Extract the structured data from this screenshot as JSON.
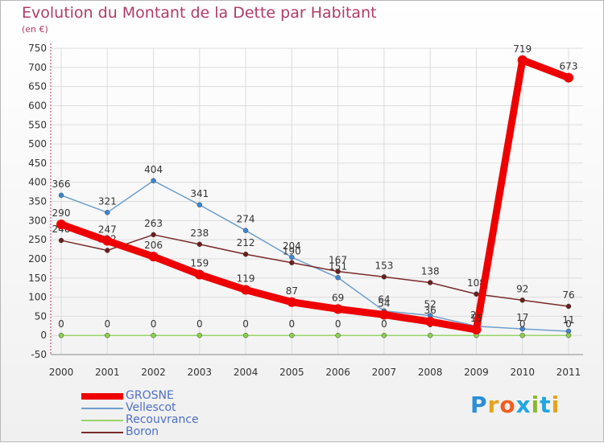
{
  "title": "Evolution du Montant de la Dette par Habitant",
  "subtitle": "(en €)",
  "logo": {
    "text": "Proxiti",
    "colors": [
      "#2a8fd6",
      "#e8a21b",
      "#f25c1f",
      "#22a6e0",
      "#8ab92b",
      "#22a6e0",
      "#e8a21b"
    ]
  },
  "chart_data": {
    "type": "line",
    "title": "Evolution du Montant de la Dette par Habitant",
    "subtitle": "(en €)",
    "x": [
      "2000",
      "2001",
      "2002",
      "2003",
      "2004",
      "2005",
      "2006",
      "2007",
      "2008",
      "2009",
      "2010",
      "2011"
    ],
    "ylim": [
      -50,
      750
    ],
    "yticks": [
      -50,
      0,
      50,
      100,
      150,
      200,
      250,
      300,
      350,
      400,
      450,
      500,
      550,
      600,
      650,
      700,
      750
    ],
    "grid": true,
    "legend_position": "bottom-left",
    "series": [
      {
        "name": "Vellescot",
        "color": "#6f9fd0",
        "marker": "#3f86cf",
        "width": 1.5,
        "values": [
          366,
          321,
          404,
          341,
          274,
          204,
          151,
          64,
          52,
          24,
          17,
          11
        ],
        "labels": [
          "366",
          "321",
          "404",
          "341",
          "274",
          "204",
          "151",
          "64",
          "52",
          "24",
          "17",
          "11"
        ]
      },
      {
        "name": "Recouvrance",
        "color": "#9ad46a",
        "marker": "#8bcf4c",
        "width": 1.5,
        "values": [
          0,
          0,
          0,
          0,
          0,
          0,
          0,
          0,
          0,
          0,
          0,
          0
        ],
        "labels": [
          "0",
          "0",
          "0",
          "0",
          "0",
          "0",
          "0",
          "0",
          "0",
          "0",
          "0",
          "0"
        ]
      },
      {
        "name": "Boron",
        "color": "#7a2a2a",
        "marker": "#6b1e1e",
        "width": 1.5,
        "values": [
          248,
          222,
          263,
          238,
          212,
          190,
          167,
          153,
          138,
          108,
          92,
          76
        ],
        "labels": [
          "248",
          "222",
          "263",
          "238",
          "212",
          "190",
          "167",
          "153",
          "138",
          "108",
          "92",
          "76"
        ]
      },
      {
        "name": "GROSNE",
        "color": "#ee0000",
        "marker": "#ee0000",
        "width": 9,
        "values": [
          290,
          247,
          206,
          159,
          119,
          87,
          69,
          54,
          36,
          15,
          719,
          673
        ],
        "labels": [
          "290",
          "247",
          "206",
          "159",
          "119",
          "87",
          "69",
          "54",
          "36",
          "15",
          "719",
          "673"
        ]
      }
    ]
  }
}
